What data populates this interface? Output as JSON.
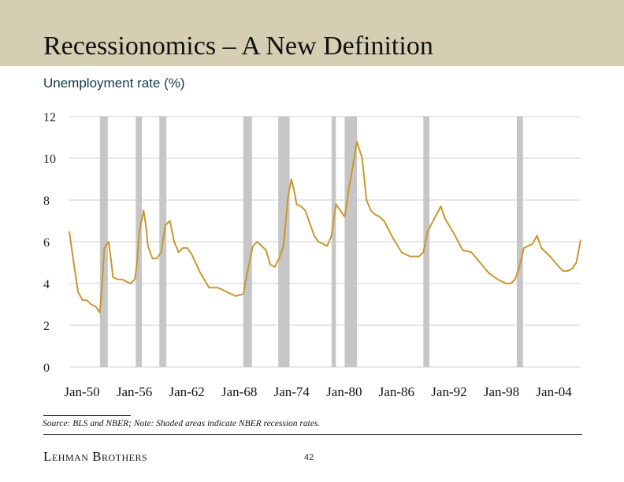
{
  "header": {
    "title": "Recessionomics – A New Definition",
    "subtitle": "Unemployment rate (%)"
  },
  "footer": {
    "source": "Source: BLS and NBER; Note: Shaded areas indicate NBER recession rates.",
    "brand": "Lehman Brothers",
    "page_number": "42"
  },
  "colors": {
    "title_bar": "#d5ceb3",
    "line": "#c9972e",
    "recession_shade": "#c6c6c6",
    "gridline": "#cfcfcf",
    "subtitle": "#0f3b4a"
  },
  "chart_data": {
    "type": "line",
    "title": "Unemployment rate (%)",
    "xlabel": "",
    "ylabel": "",
    "ylim": [
      0,
      12
    ],
    "yticks": [
      0,
      2,
      4,
      6,
      8,
      10,
      12
    ],
    "xlim": [
      1950.0,
      2008.5
    ],
    "xtick_labels": [
      "Jan-50",
      "Jan-56",
      "Jan-62",
      "Jan-68",
      "Jan-74",
      "Jan-80",
      "Jan-86",
      "Jan-92",
      "Jan-98",
      "Jan-04"
    ],
    "xtick_years": [
      1950,
      1956,
      1962,
      1968,
      1974,
      1980,
      1986,
      1992,
      1998,
      2004
    ],
    "grid": true,
    "recessions": [
      [
        1953.5,
        1954.4
      ],
      [
        1957.6,
        1958.3
      ],
      [
        1960.3,
        1961.1
      ],
      [
        1969.9,
        1970.9
      ],
      [
        1973.9,
        1975.2
      ],
      [
        1980.0,
        1980.5
      ],
      [
        1981.5,
        1982.9
      ],
      [
        1990.5,
        1991.2
      ],
      [
        2001.2,
        2001.9
      ]
    ],
    "series": [
      {
        "x": [
          1950.0,
          1950.5,
          1951.0,
          1951.5,
          1952.0,
          1952.5,
          1953.0,
          1953.5,
          1953.75,
          1954.0,
          1954.5,
          1954.75,
          1955.0,
          1955.5,
          1956.0,
          1956.5,
          1957.0,
          1957.5,
          1957.75,
          1958.0,
          1958.5,
          1958.75,
          1959.0,
          1959.5,
          1960.0,
          1960.5,
          1961.0,
          1961.5,
          1962.0,
          1962.5,
          1963.0,
          1963.5,
          1964.0,
          1965.0,
          1966.0,
          1967.0,
          1968.0,
          1969.0,
          1969.9,
          1970.5,
          1971.0,
          1971.5,
          1972.0,
          1972.5,
          1973.0,
          1973.5,
          1974.0,
          1974.5,
          1975.0,
          1975.4,
          1975.8,
          1976.0,
          1976.5,
          1977.0,
          1977.5,
          1978.0,
          1978.5,
          1979.0,
          1979.5,
          1980.0,
          1980.5,
          1981.0,
          1981.5,
          1982.0,
          1982.5,
          1982.9,
          1983.5,
          1984.0,
          1984.5,
          1985.0,
          1985.5,
          1986.0,
          1987.0,
          1988.0,
          1989.0,
          1990.0,
          1990.5,
          1991.0,
          1991.5,
          1992.0,
          1992.5,
          1993.0,
          1994.0,
          1995.0,
          1996.0,
          1997.0,
          1998.0,
          1999.0,
          2000.0,
          2000.5,
          2001.0,
          2001.5,
          2002.0,
          2002.5,
          2003.0,
          2003.5,
          2004.0,
          2005.0,
          2006.0,
          2006.5,
          2007.0,
          2007.5,
          2008.0,
          2008.5
        ],
        "values": [
          6.5,
          5.0,
          3.6,
          3.2,
          3.2,
          3.0,
          2.9,
          2.6,
          4.0,
          5.7,
          6.0,
          5.2,
          4.3,
          4.2,
          4.2,
          4.1,
          4.0,
          4.2,
          5.0,
          6.5,
          7.5,
          6.8,
          5.8,
          5.2,
          5.2,
          5.5,
          6.8,
          7.0,
          6.0,
          5.5,
          5.7,
          5.7,
          5.4,
          4.5,
          3.8,
          3.8,
          3.6,
          3.4,
          3.5,
          4.8,
          5.8,
          6.0,
          5.8,
          5.6,
          4.9,
          4.8,
          5.2,
          5.8,
          8.1,
          9.0,
          8.3,
          7.8,
          7.7,
          7.5,
          6.9,
          6.3,
          6.0,
          5.9,
          5.8,
          6.3,
          7.8,
          7.5,
          7.2,
          8.6,
          9.8,
          10.8,
          10.0,
          8.0,
          7.5,
          7.3,
          7.2,
          7.0,
          6.2,
          5.5,
          5.3,
          5.3,
          5.5,
          6.5,
          6.9,
          7.3,
          7.7,
          7.1,
          6.4,
          5.6,
          5.5,
          5.0,
          4.5,
          4.2,
          4.0,
          4.0,
          4.2,
          4.8,
          5.7,
          5.8,
          5.9,
          6.3,
          5.7,
          5.3,
          4.8,
          4.6,
          4.6,
          4.7,
          5.0,
          6.1
        ]
      }
    ]
  }
}
